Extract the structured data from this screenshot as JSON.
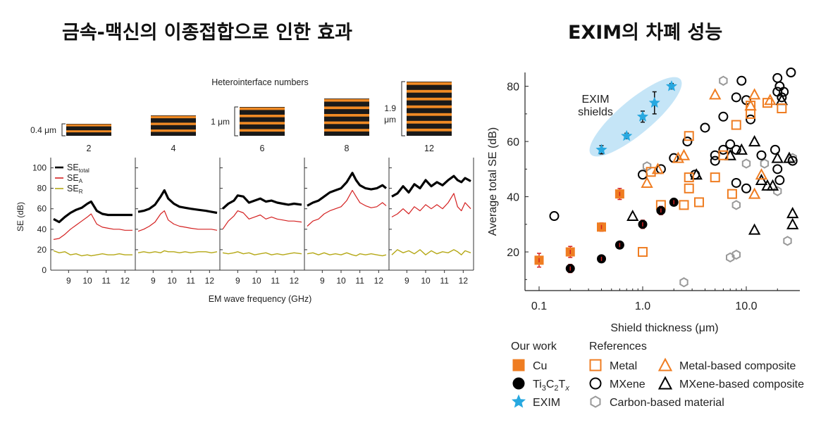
{
  "titles": {
    "left": "금속-맥신의 이종접합으로 인한 효과",
    "right": "EXIM의 차폐 성능"
  },
  "chart_data": [
    {
      "type": "line",
      "title": "Heterointerface numbers",
      "xlabel": "EM wave frequency (GHz)",
      "ylabel": "SE (dB)",
      "ylim": [
        0,
        110
      ],
      "xlim": [
        8.2,
        12.4
      ],
      "x_ticks": [
        "9",
        "10",
        "11",
        "12"
      ],
      "y_ticks": [
        "0",
        "20",
        "40",
        "60",
        "80",
        "100"
      ],
      "legend": [
        {
          "label": "SE",
          "sub": "total",
          "color": "#000000"
        },
        {
          "label": "SE",
          "sub": "A",
          "color": "#d42020"
        },
        {
          "label": "SE",
          "sub": "R",
          "color": "#b5a816"
        }
      ],
      "thickness_labels": {
        "t1": "0.4 μm",
        "t2": "1 μm",
        "t3a": "1.9",
        "t3b": "μm"
      },
      "panels": [
        {
          "heterointerfaces": "2",
          "layers": 4,
          "x": [
            8.2,
            8.5,
            8.8,
            9.1,
            9.4,
            9.7,
            10.0,
            10.2,
            10.5,
            10.8,
            11.1,
            11.4,
            11.7,
            12.0,
            12.4
          ],
          "se_total": [
            50,
            47,
            52,
            56,
            59,
            61,
            65,
            67,
            58,
            55,
            54,
            54,
            54,
            54,
            54
          ],
          "se_a": [
            30,
            31,
            35,
            40,
            44,
            48,
            52,
            55,
            45,
            42,
            41,
            40,
            40,
            39,
            39
          ],
          "se_r": [
            19,
            17,
            18,
            15,
            16,
            14,
            15,
            14,
            15,
            16,
            15,
            15,
            16,
            15,
            15
          ]
        },
        {
          "heterointerfaces": "4",
          "layers": 6,
          "x": [
            8.2,
            8.5,
            8.8,
            9.1,
            9.4,
            9.6,
            9.8,
            10.1,
            10.4,
            10.7,
            11.0,
            11.4,
            11.8,
            12.1,
            12.4
          ],
          "se_total": [
            57,
            58,
            60,
            64,
            72,
            78,
            70,
            65,
            62,
            61,
            60,
            59,
            58,
            57,
            56
          ],
          "se_a": [
            38,
            40,
            43,
            47,
            55,
            58,
            49,
            45,
            43,
            42,
            41,
            40,
            40,
            40,
            39
          ],
          "se_r": [
            17,
            18,
            17,
            18,
            17,
            19,
            18,
            18,
            17,
            18,
            17,
            18,
            18,
            17,
            18
          ]
        },
        {
          "heterointerfaces": "6",
          "layers": 8,
          "x": [
            8.2,
            8.5,
            8.8,
            9.0,
            9.3,
            9.6,
            9.9,
            10.2,
            10.5,
            10.8,
            11.1,
            11.4,
            11.7,
            12.0,
            12.4
          ],
          "se_total": [
            60,
            65,
            68,
            73,
            72,
            66,
            68,
            70,
            67,
            68,
            66,
            65,
            64,
            65,
            64
          ],
          "se_a": [
            40,
            48,
            53,
            58,
            56,
            50,
            52,
            54,
            50,
            52,
            50,
            49,
            48,
            48,
            47
          ],
          "se_r": [
            17,
            16,
            17,
            18,
            16,
            17,
            15,
            16,
            17,
            15,
            16,
            15,
            16,
            17,
            16
          ]
        },
        {
          "heterointerfaces": "8",
          "layers": 10,
          "x": [
            8.2,
            8.5,
            8.8,
            9.1,
            9.4,
            9.7,
            10.0,
            10.3,
            10.6,
            10.8,
            11.0,
            11.3,
            11.6,
            11.9,
            12.2,
            12.4
          ],
          "se_total": [
            63,
            66,
            68,
            72,
            76,
            78,
            80,
            86,
            95,
            88,
            83,
            80,
            79,
            80,
            83,
            80
          ],
          "se_a": [
            43,
            48,
            50,
            55,
            58,
            60,
            62,
            68,
            78,
            72,
            66,
            63,
            61,
            62,
            66,
            63
          ],
          "se_r": [
            16,
            17,
            15,
            17,
            15,
            16,
            15,
            17,
            15,
            14,
            16,
            15,
            16,
            15,
            14,
            15
          ]
        },
        {
          "heterointerfaces": "12",
          "layers": 14,
          "x": [
            8.2,
            8.5,
            8.8,
            9.1,
            9.4,
            9.7,
            10.0,
            10.3,
            10.6,
            10.9,
            11.2,
            11.5,
            11.7,
            11.9,
            12.1,
            12.4
          ],
          "se_total": [
            72,
            75,
            82,
            76,
            84,
            80,
            88,
            82,
            86,
            83,
            88,
            92,
            88,
            86,
            90,
            87
          ],
          "se_a": [
            52,
            55,
            60,
            55,
            62,
            58,
            64,
            60,
            64,
            60,
            66,
            75,
            62,
            58,
            66,
            60
          ],
          "se_r": [
            15,
            20,
            17,
            19,
            16,
            20,
            15,
            19,
            16,
            18,
            17,
            20,
            18,
            15,
            19,
            17
          ]
        }
      ]
    },
    {
      "type": "scatter",
      "xscale": "log",
      "xlim": [
        0.09,
        30
      ],
      "ylim": [
        6,
        85
      ],
      "xlabel": "Shield thickness (μm)",
      "ylabel": "Average total SE (dB)",
      "x_ticks": [
        "0.1",
        "1.0",
        "10.0"
      ],
      "y_ticks": [
        "20",
        "40",
        "60",
        "80"
      ],
      "annotation": [
        "EXIM",
        "shields"
      ],
      "legend": {
        "our_work_title": "Our work",
        "references_title": "References",
        "our_work": [
          {
            "label": "Cu",
            "marker": "filled-square",
            "color": "#ef7d22"
          },
          {
            "label": "Ti",
            "marker": "filled-circle",
            "color": "#000000",
            "sub1": "3",
            "mid": "C",
            "sub2": "2",
            "mid2": "T",
            "sub3": "x"
          },
          {
            "label": "EXIM",
            "marker": "star",
            "color": "#27a8e0"
          }
        ],
        "references": [
          {
            "label": "Metal",
            "marker": "open-square",
            "color": "#ef7d22"
          },
          {
            "label": "MXene",
            "marker": "open-circle",
            "color": "#000000"
          },
          {
            "label": "Carbon-based material",
            "marker": "open-hexagon",
            "color": "#999999"
          },
          {
            "label": "Metal-based composite",
            "marker": "open-triangle",
            "color": "#ef7d22"
          },
          {
            "label": "MXene-based composite",
            "marker": "open-triangle",
            "color": "#000000"
          }
        ]
      },
      "series": [
        {
          "name": "Cu",
          "marker": "filled-square",
          "color": "#ef7d22",
          "points": [
            [
              0.1,
              17
            ],
            [
              0.2,
              20
            ],
            [
              0.4,
              29
            ],
            [
              0.6,
              41
            ]
          ],
          "err": [
            2.5,
            2,
            1.5,
            2
          ]
        },
        {
          "name": "Ti3C2Tx",
          "marker": "filled-circle",
          "color": "#000000",
          "points": [
            [
              0.2,
              14
            ],
            [
              0.4,
              17.5
            ],
            [
              0.6,
              22.5
            ],
            [
              1.0,
              30
            ],
            [
              1.5,
              35
            ],
            [
              2.0,
              38
            ]
          ],
          "err": [
            1.5,
            1,
            1,
            1.5,
            1.5,
            1
          ]
        },
        {
          "name": "EXIM",
          "marker": "star",
          "color": "#27a8e0",
          "points": [
            [
              0.4,
              57
            ],
            [
              0.7,
              62
            ],
            [
              1.0,
              69
            ],
            [
              1.3,
              74
            ],
            [
              1.9,
              80
            ]
          ],
          "err": [
            1.5,
            1,
            2,
            4,
            1
          ]
        },
        {
          "name": "Metal",
          "marker": "open-square",
          "color": "#ef7d22",
          "points": [
            [
              1.0,
              20
            ],
            [
              1.2,
              49
            ],
            [
              1.5,
              37
            ],
            [
              2.5,
              37
            ],
            [
              2.8,
              43
            ],
            [
              2.8,
              47
            ],
            [
              2.8,
              62
            ],
            [
              3.5,
              38
            ],
            [
              5,
              47
            ],
            [
              6,
              55
            ],
            [
              7.3,
              41
            ],
            [
              8,
              66
            ],
            [
              11,
              70
            ],
            [
              11,
              73
            ],
            [
              16,
              74
            ],
            [
              22,
              72
            ]
          ]
        },
        {
          "name": "Metal-based composite",
          "marker": "open-triangle",
          "color": "#ef7d22",
          "points": [
            [
              1.1,
              45
            ],
            [
              1.4,
              50
            ],
            [
              2.2,
              54
            ],
            [
              2.5,
              55
            ],
            [
              5,
              77
            ],
            [
              11,
              73
            ],
            [
              12,
              77
            ],
            [
              12,
              41
            ],
            [
              14,
              48
            ],
            [
              17,
              75
            ]
          ]
        },
        {
          "name": "MXene",
          "marker": "open-circle",
          "color": "#000000",
          "points": [
            [
              0.14,
              33
            ],
            [
              1.0,
              48
            ],
            [
              1.5,
              50
            ],
            [
              2.0,
              54
            ],
            [
              2.7,
              60
            ],
            [
              3.2,
              48
            ],
            [
              4,
              65
            ],
            [
              5,
              55
            ],
            [
              5,
              53
            ],
            [
              6,
              69
            ],
            [
              6,
              57
            ],
            [
              7,
              59
            ],
            [
              8,
              57
            ],
            [
              8,
              45
            ],
            [
              8,
              76
            ],
            [
              9,
              82
            ],
            [
              10,
              75
            ],
            [
              10,
              43
            ],
            [
              11,
              68
            ],
            [
              14,
              55
            ],
            [
              19,
              57
            ],
            [
              20,
              78
            ],
            [
              20,
              83
            ],
            [
              21,
              80
            ],
            [
              22,
              76
            ],
            [
              23,
              78
            ],
            [
              20,
              50
            ],
            [
              21,
              46
            ],
            [
              28,
              53
            ],
            [
              27,
              85
            ]
          ]
        },
        {
          "name": "MXene-based composite",
          "marker": "open-triangle",
          "color": "#000000",
          "points": [
            [
              0.8,
              33
            ],
            [
              3.3,
              48
            ],
            [
              7,
              55
            ],
            [
              9,
              57
            ],
            [
              12,
              60
            ],
            [
              12,
              28
            ],
            [
              14,
              46
            ],
            [
              16,
              44
            ],
            [
              18,
              44
            ],
            [
              20,
              54
            ],
            [
              22,
              75
            ],
            [
              26,
              54
            ],
            [
              28,
              34
            ],
            [
              28,
              30
            ]
          ]
        },
        {
          "name": "Carbon-based material",
          "marker": "open-hexagon",
          "color": "#999999",
          "points": [
            [
              1.1,
              51
            ],
            [
              2.5,
              9
            ],
            [
              6,
              82
            ],
            [
              7,
              18
            ],
            [
              8,
              19
            ],
            [
              8,
              37
            ],
            [
              10,
              52
            ],
            [
              15,
              52
            ],
            [
              20,
              42
            ],
            [
              25,
              24
            ],
            [
              28,
              54
            ]
          ]
        }
      ]
    }
  ]
}
